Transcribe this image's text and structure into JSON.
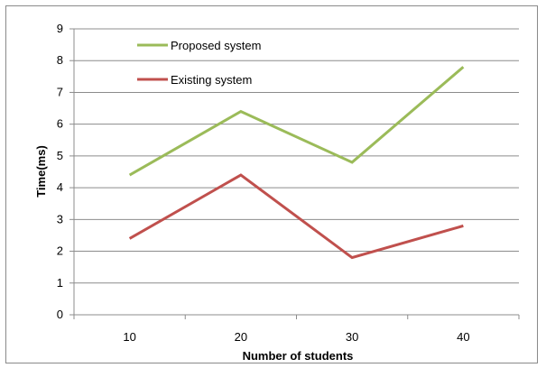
{
  "chart_data": {
    "type": "line",
    "title": "",
    "xlabel": "Number of  students",
    "ylabel": "Time(ms)",
    "categories": [
      "10",
      "20",
      "30",
      "40"
    ],
    "ylim": [
      0,
      9
    ],
    "yticks": [
      0,
      1,
      2,
      3,
      4,
      5,
      6,
      7,
      8,
      9
    ],
    "grid": true,
    "legend_position": "top-left",
    "series": [
      {
        "name": "Proposed system",
        "color": "#9bbb59",
        "values": [
          4.4,
          6.4,
          4.8,
          7.8
        ]
      },
      {
        "name": "Existing system",
        "color": "#c0504d",
        "values": [
          2.4,
          4.4,
          1.8,
          2.8
        ]
      }
    ]
  }
}
